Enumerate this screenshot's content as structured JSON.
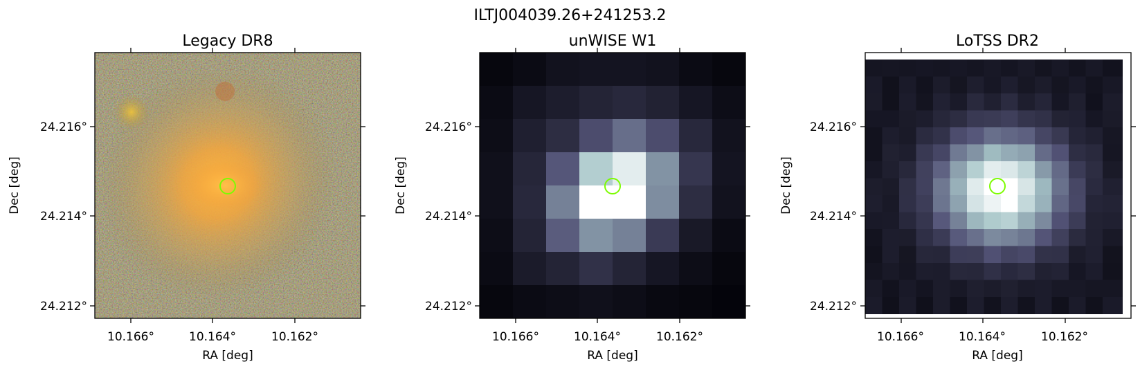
{
  "figure": {
    "suptitle": "ILTJ004039.26+241253.2"
  },
  "panels": [
    {
      "id": "legacy",
      "title": "Legacy DR8",
      "xlabel": "RA [deg]",
      "ylabel": "Dec [deg]",
      "xticks": [
        "10.166°",
        "10.164°",
        "10.162°"
      ],
      "yticks": [
        "24.216°",
        "24.214°",
        "24.212°"
      ],
      "image_style": "optical color composite: orange-yellow elliptical galaxy on noisy multicolour background, smaller yellow companion at upper left",
      "accent_colors": [
        "#f5a436",
        "#c49a52",
        "#7a8a4a",
        "#a0704c"
      ]
    },
    {
      "id": "unwise",
      "title": "unWISE W1",
      "xlabel": "RA [deg]",
      "ylabel": "Dec [deg]",
      "xticks": [
        "10.166°",
        "10.164°",
        "10.162°"
      ],
      "yticks": [
        "24.216°",
        "24.214°",
        "24.212°"
      ],
      "image_style": "coarse pixelated grayscale-bone intensity map with bright centre",
      "accent_colors": [
        "#0a0a0e",
        "#2c2c3e",
        "#585874",
        "#84a0a8",
        "#d8ecec",
        "#ffffff"
      ]
    },
    {
      "id": "lotss",
      "title": "LoTSS DR2",
      "xlabel": "RA [deg]",
      "ylabel": "Dec [deg]",
      "xticks": [
        "10.166°",
        "10.164°",
        "10.162°"
      ],
      "yticks": [
        "24.216°",
        "24.214°",
        "24.212°"
      ],
      "image_style": "pixelated grayscale-bone radio intensity map with bright centre, white margins at top and right",
      "accent_colors": [
        "#0a0a0e",
        "#2c2c3e",
        "#585874",
        "#84a0a8",
        "#d8ecec",
        "#ffffff"
      ]
    }
  ],
  "marker": {
    "shape": "circle",
    "color": "#7cfc00"
  }
}
